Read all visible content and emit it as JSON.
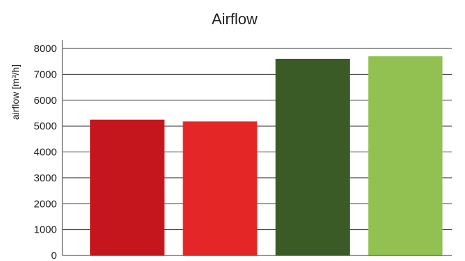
{
  "chart_data": {
    "type": "bar",
    "title": "Airflow",
    "xlabel": "",
    "ylabel": "airflow [m³/h]",
    "categories": [
      "",
      "",
      "",
      ""
    ],
    "values": [
      5250,
      5180,
      7600,
      7700
    ],
    "colors": [
      "#c4161c",
      "#e52626",
      "#3a5a26",
      "#92c151"
    ],
    "ylim": [
      0,
      8000
    ],
    "yticks": [
      0,
      1000,
      2000,
      3000,
      4000,
      5000,
      6000,
      7000,
      8000
    ],
    "grid": true,
    "legend": "none"
  }
}
